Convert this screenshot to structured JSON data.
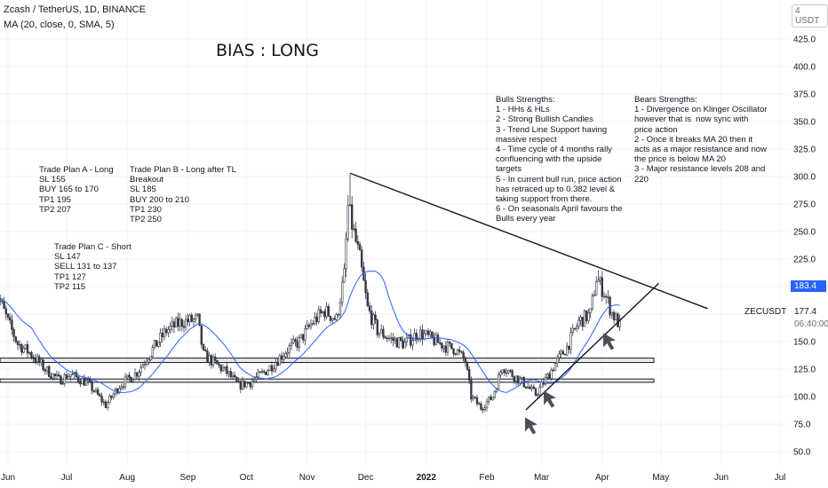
{
  "header": {
    "title": "Zcash / TetherUS, 1D, BINANCE",
    "indicator": "MA (20, close, 0, SMA, 5)"
  },
  "annotation_title": "BIAS : LONG",
  "notes": {
    "plan_a": "Trade Plan A - Long\nSL 155\nBUY 165 to 170\nTP1 195\nTP2 207",
    "plan_b": "Trade Plan B - Long after TL\nBreakout\nSL 185\nBUY 200 to 210\nTP1 230\nTP2 250",
    "plan_c": "Trade Plan C - Short\nSL 147\nSELL 131 to 137\nTP1 127\nTP2 115",
    "bulls": "Bulls Strengths:\n1 - HHs & HLs\n2 - Strong Bullish Candles\n3 - Trend Line Support having\nmassive respect\n4 - Time cycle of 4 months rally\nconfluencing with the upside\ntargets\n5 - In current bull run, price action\nhas retraced up to 0.382 level &\ntaking support from there.\n6 - On seasonals April favours the\nBulls every year",
    "bears": "Bears Strengths:\n1 - Divergence on Klinger Oscillator\nhowever that is  now sync with\nprice action\n2 - Once it breaks MA 20 then it\nacts as a major resistance and now\nthe price is below MA 20\n3 - Major resistance levels 208 and\n220"
  },
  "price_scale": {
    "currency": "4 USDT",
    "symbol": "ZECUSDT",
    "current_price": "183.4",
    "ma_value": "177.4",
    "countdown": "06:40:00"
  },
  "chart_data": {
    "type": "candlestick",
    "symbol": "ZECUSDT",
    "interval": "1D",
    "exchange": "BINANCE",
    "ylim": [
      32,
      445
    ],
    "y_ticks": [
      "425.0",
      "400.0",
      "375.0",
      "350.0",
      "325.0",
      "300.0",
      "275.0",
      "250.0",
      "225.0",
      "200.0",
      "175.0",
      "150.0",
      "125.0",
      "100.0",
      "75.0",
      "50.0"
    ],
    "x_ticks": [
      "Jun",
      "Jul",
      "Aug",
      "Sep",
      "Oct",
      "Nov",
      "Dec",
      "2022",
      "Feb",
      "Mar",
      "Apr",
      "May",
      "Jun",
      "Jul"
    ],
    "x_tick_values": [
      "2021-06-01",
      "2021-07-01",
      "2021-08-01",
      "2021-09-01",
      "2021-10-01",
      "2021-11-01",
      "2021-12-01",
      "2022-01-01",
      "2022-02-01",
      "2022-03-01",
      "2022-04-01",
      "2022-05-01",
      "2022-06-01",
      "2022-07-01"
    ],
    "price_path": [
      [
        "2021-05-25",
        200
      ],
      [
        "2021-06-01",
        168
      ],
      [
        "2021-06-06",
        148
      ],
      [
        "2021-06-12",
        140
      ],
      [
        "2021-06-20",
        125
      ],
      [
        "2021-06-27",
        115
      ],
      [
        "2021-07-03",
        120
      ],
      [
        "2021-07-12",
        112
      ],
      [
        "2021-07-21",
        92
      ],
      [
        "2021-07-28",
        110
      ],
      [
        "2021-08-06",
        122
      ],
      [
        "2021-08-14",
        143
      ],
      [
        "2021-08-21",
        160
      ],
      [
        "2021-08-29",
        168
      ],
      [
        "2021-09-06",
        170
      ],
      [
        "2021-09-09",
        138
      ],
      [
        "2021-09-15",
        130
      ],
      [
        "2021-09-21",
        122
      ],
      [
        "2021-09-27",
        110
      ],
      [
        "2021-10-03",
        113
      ],
      [
        "2021-10-10",
        122
      ],
      [
        "2021-10-15",
        130
      ],
      [
        "2021-10-22",
        143
      ],
      [
        "2021-10-28",
        150
      ],
      [
        "2021-11-04",
        168
      ],
      [
        "2021-11-10",
        178
      ],
      [
        "2021-11-16",
        170
      ],
      [
        "2021-11-20",
        210
      ],
      [
        "2021-11-22",
        272
      ],
      [
        "2021-11-25",
        248
      ],
      [
        "2021-11-28",
        225
      ],
      [
        "2021-12-02",
        180
      ],
      [
        "2021-12-07",
        160
      ],
      [
        "2021-12-14",
        152
      ],
      [
        "2021-12-21",
        148
      ],
      [
        "2021-12-28",
        158
      ],
      [
        "2022-01-01",
        155
      ],
      [
        "2022-01-06",
        150
      ],
      [
        "2022-01-12",
        145
      ],
      [
        "2022-01-16",
        143
      ],
      [
        "2022-01-21",
        132
      ],
      [
        "2022-01-24",
        100
      ],
      [
        "2022-01-29",
        90
      ],
      [
        "2022-02-04",
        100
      ],
      [
        "2022-02-09",
        128
      ],
      [
        "2022-02-14",
        120
      ],
      [
        "2022-02-20",
        112
      ],
      [
        "2022-02-26",
        102
      ],
      [
        "2022-03-04",
        118
      ],
      [
        "2022-03-08",
        130
      ],
      [
        "2022-03-14",
        145
      ],
      [
        "2022-03-20",
        168
      ],
      [
        "2022-03-26",
        175
      ],
      [
        "2022-03-29",
        208
      ],
      [
        "2022-04-02",
        195
      ],
      [
        "2022-04-06",
        176
      ],
      [
        "2022-04-10",
        165
      ]
    ],
    "annotated_levels": [
      {
        "name": "Peak",
        "date": "2021-11-23",
        "value": 302
      },
      {
        "name": "Recent high",
        "date": "2022-03-30",
        "value": 215
      },
      {
        "name": "Low",
        "date": "2022-01-30",
        "value": 85
      }
    ],
    "moving_average": {
      "name": "MA (20, close, 0, SMA, 5)",
      "color": "#2962ff",
      "last_value": 177.4
    },
    "trendlines": [
      {
        "name": "descending resistance",
        "from": [
          "2021-11-23",
          303
        ],
        "to": [
          "2022-05-25",
          180
        ],
        "color": "#131722"
      },
      {
        "name": "ascending support",
        "from": [
          "2022-02-21",
          88
        ],
        "to": [
          "2022-04-30",
          203
        ],
        "color": "#131722"
      }
    ],
    "zones": [
      {
        "name": "upper support zone",
        "low": 131,
        "high": 135
      },
      {
        "name": "lower support zone",
        "low": 113,
        "high": 116
      }
    ],
    "arrows": [
      "up-arrow",
      "up-arrow",
      "up-arrow"
    ],
    "colors": {
      "up": "#26a69a",
      "down": "#ef5350",
      "candle": "#363a45",
      "price_label": "#2962ff"
    }
  }
}
